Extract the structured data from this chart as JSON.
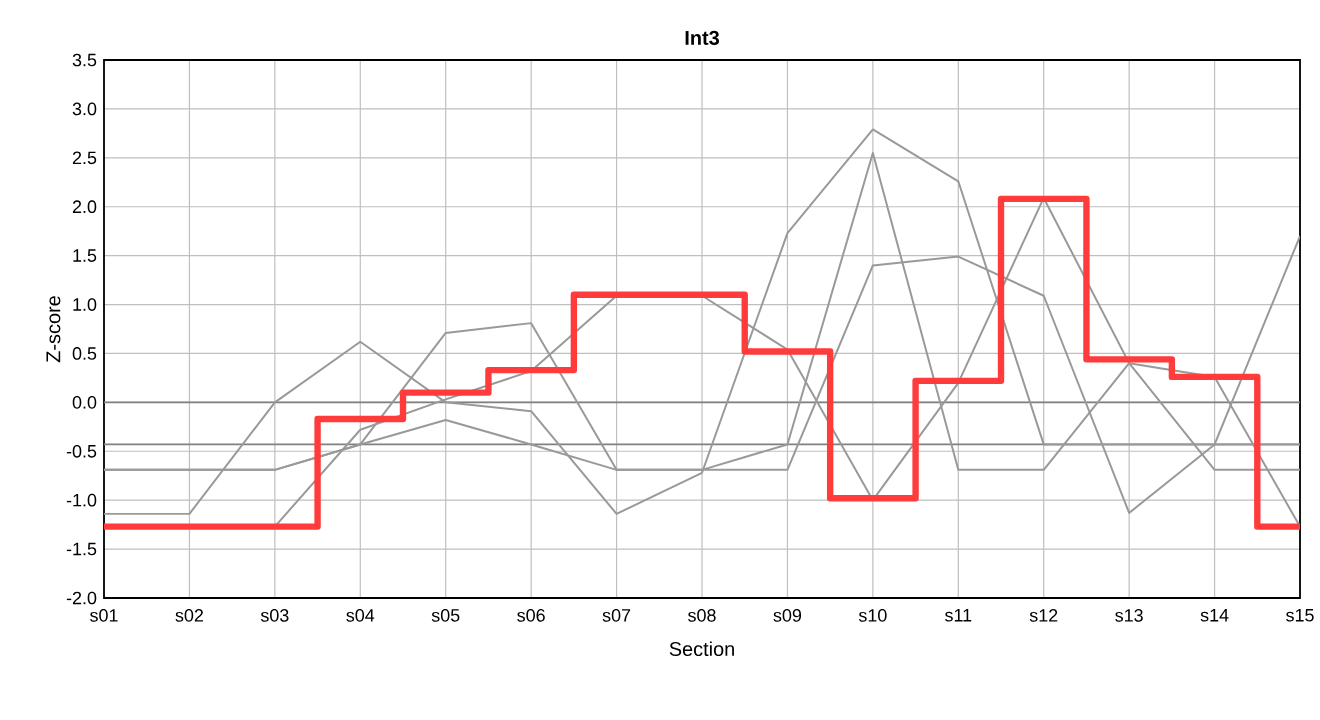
{
  "chart_data": {
    "type": "line",
    "title": "Int3",
    "xlabel": "Section",
    "ylabel": "Z-score",
    "categories": [
      "s01",
      "s02",
      "s03",
      "s04",
      "s05",
      "s06",
      "s07",
      "s08",
      "s09",
      "s10",
      "s11",
      "s12",
      "s13",
      "s14",
      "s15"
    ],
    "series": [
      {
        "color": "#999999",
        "values": [
          -1.14,
          -1.14,
          0,
          0.62,
          0,
          -0.09,
          -1.14,
          -0.72,
          1.73,
          2.79,
          2.26,
          -0.43,
          -0.43,
          -0.43,
          -0.43
        ]
      },
      {
        "color": "#999999",
        "values": [
          -0.69,
          -0.69,
          -0.69,
          -0.43,
          0.71,
          0.81,
          -0.69,
          -0.69,
          -0.43,
          2.55,
          -0.69,
          -0.69,
          0.4,
          0.26,
          -1.27
        ]
      },
      {
        "color": "#999999",
        "values": [
          -1.27,
          -1.27,
          -1.27,
          -0.28,
          0.03,
          0.32,
          1.09,
          1.09,
          0.54,
          -1.0,
          0.2,
          2.09,
          0.4,
          -0.69,
          -0.69
        ]
      },
      {
        "color": "#999999",
        "values": [
          -0.69,
          -0.69,
          -0.69,
          -0.43,
          -0.18,
          -0.43,
          -0.69,
          -0.69,
          -0.69,
          1.4,
          1.49,
          1.09,
          -1.13,
          -0.43,
          1.7
        ]
      },
      {
        "type": "step",
        "color": "#ff3b3b",
        "values": [
          -1.27,
          -1.27,
          -1.27,
          -0.17,
          0.1,
          0.33,
          1.1,
          1.1,
          0.52,
          -0.98,
          0.22,
          2.08,
          0.44,
          0.26,
          -1.27
        ]
      }
    ],
    "ylim": [
      -2,
      3.5
    ],
    "yticks": [
      {
        "value": -2,
        "label": "-2.0"
      },
      {
        "value": -1.5,
        "label": "-1.5"
      },
      {
        "value": -1,
        "label": "-1.0"
      },
      {
        "value": -0.5,
        "label": "-0.5"
      },
      {
        "value": 0,
        "label": "0.0"
      },
      {
        "value": 0.5,
        "label": "0.5"
      },
      {
        "value": 1,
        "label": "1.0"
      },
      {
        "value": 1.5,
        "label": "1.5"
      },
      {
        "value": 2,
        "label": "2.0"
      },
      {
        "value": 2.5,
        "label": "2.5"
      },
      {
        "value": 3,
        "label": "3.0"
      },
      {
        "value": 3.5,
        "label": "3.5"
      }
    ],
    "ref_lines": [
      {
        "axis": "y",
        "value": 0,
        "color": "#808080"
      },
      {
        "axis": "y",
        "value": -0.43,
        "color": "#808080"
      }
    ],
    "grid": true
  }
}
